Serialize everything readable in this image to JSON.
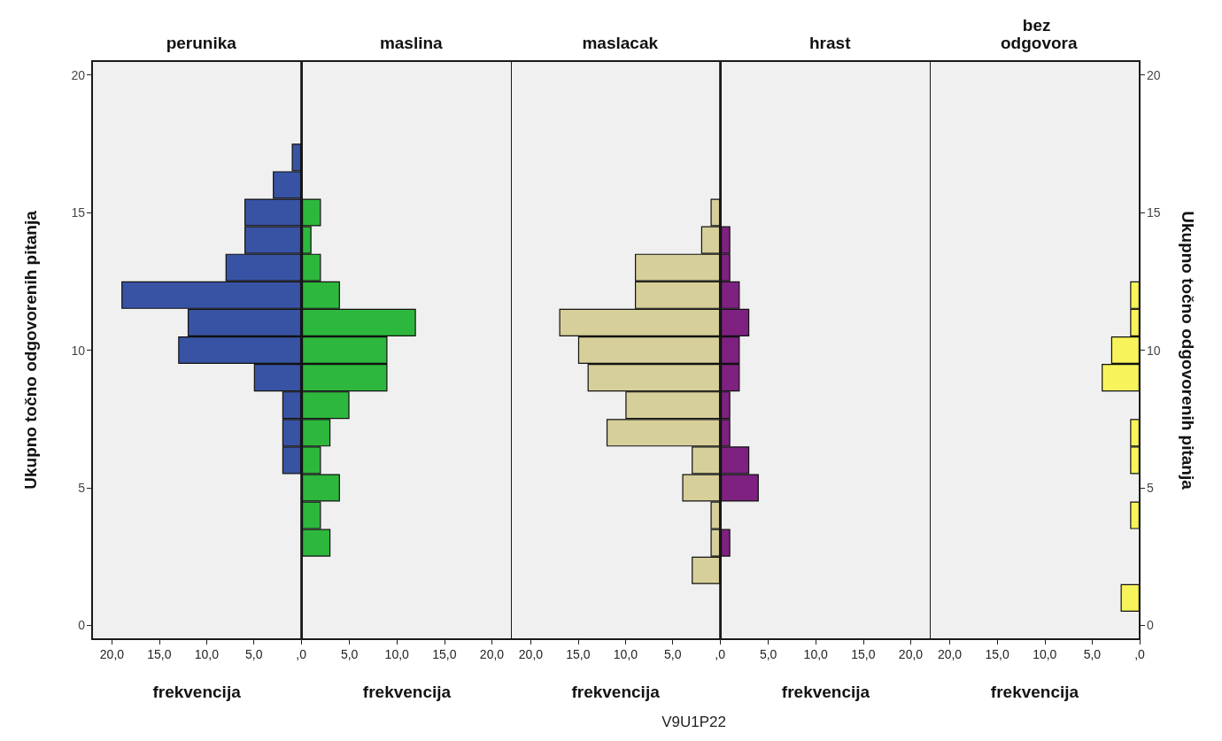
{
  "chart_data": [
    {
      "type": "bar",
      "orientation": "horizontal",
      "title": "perunika",
      "xlabel": "frekvencija",
      "ylabel": "Ukupno točno odgovorenih pitanja",
      "categories": [
        "20",
        null,
        null,
        null,
        null,
        "15",
        null,
        null,
        null,
        null,
        "10",
        null,
        null,
        null,
        null,
        "5",
        null,
        null,
        null,
        null,
        "0"
      ],
      "series": [
        {
          "color": "#3953a4",
          "values": [
            0,
            0,
            0,
            1,
            3,
            6,
            6,
            8,
            19,
            12,
            13,
            5,
            2,
            2,
            2,
            0,
            0,
            0,
            0,
            0,
            0
          ]
        }
      ],
      "xlim": [
        22.1,
        0
      ],
      "xticks": [
        {
          "value": 20,
          "label": "20,0"
        },
        {
          "value": 15,
          "label": "15,0"
        },
        {
          "value": 10,
          "label": "10,0"
        },
        {
          "value": 5,
          "label": "5,0"
        },
        {
          "value": 0,
          "label": ",0"
        }
      ]
    },
    {
      "type": "bar",
      "orientation": "horizontal",
      "title": "maslina",
      "xlabel": "frekvencija",
      "categories": [
        "20",
        null,
        null,
        null,
        null,
        "15",
        null,
        null,
        null,
        null,
        "10",
        null,
        null,
        null,
        null,
        "5",
        null,
        null,
        null,
        null,
        "0"
      ],
      "series": [
        {
          "color": "#2db83d",
          "values": [
            0,
            0,
            0,
            0,
            0,
            2,
            1,
            2,
            4,
            12,
            9,
            9,
            5,
            3,
            2,
            4,
            2,
            3,
            0,
            0,
            0
          ]
        }
      ],
      "xlim": [
        0,
        22.1
      ],
      "xticks": [
        {
          "value": 5,
          "label": "5,0"
        },
        {
          "value": 10,
          "label": "10,0"
        },
        {
          "value": 15,
          "label": "15,0"
        },
        {
          "value": 20,
          "label": "20,0"
        }
      ],
      "tick_labels": "x"
    },
    {
      "type": "bar",
      "orientation": "horizontal",
      "title": "maslacak",
      "xlabel": "frekvencija",
      "categories": [
        "20",
        null,
        null,
        null,
        null,
        "15",
        null,
        null,
        null,
        null,
        "10",
        null,
        null,
        null,
        null,
        "5",
        null,
        null,
        null,
        null,
        "0"
      ],
      "series": [
        {
          "color": "#d6cf99",
          "values": [
            0,
            0,
            0,
            0,
            0,
            1,
            2,
            9,
            9,
            17,
            15,
            14,
            10,
            12,
            3,
            4,
            1,
            1,
            3,
            0,
            0
          ]
        }
      ],
      "xlim": [
        22.1,
        0
      ],
      "xticks": [
        {
          "value": 20,
          "label": "20,0"
        },
        {
          "value": 15,
          "label": "15,0"
        },
        {
          "value": 10,
          "label": "10,0"
        },
        {
          "value": 5,
          "label": "5,0"
        },
        {
          "value": 0,
          "label": ",0"
        }
      ],
      "tick_labels": "x",
      "annotations": [
        "V9U1P22"
      ]
    },
    {
      "type": "bar",
      "orientation": "horizontal",
      "title": "hrast",
      "xlabel": "frekvencija",
      "categories": [
        "20",
        null,
        null,
        null,
        null,
        "15",
        null,
        null,
        null,
        null,
        "10",
        null,
        null,
        null,
        null,
        "5",
        null,
        null,
        null,
        null,
        "0"
      ],
      "series": [
        {
          "color": "#7e2180",
          "values": [
            0,
            0,
            0,
            0,
            0,
            0,
            1,
            1,
            2,
            3,
            2,
            2,
            1,
            1,
            3,
            4,
            0,
            1,
            0,
            0,
            0
          ]
        }
      ],
      "xlim": [
        0,
        22.1
      ],
      "xticks": [
        {
          "value": 5,
          "label": "5,0"
        },
        {
          "value": 10,
          "label": "10,0"
        },
        {
          "value": 15,
          "label": "15,0"
        },
        {
          "value": 20,
          "label": "20,0"
        }
      ],
      "tick_labels": "x"
    },
    {
      "type": "bar",
      "orientation": "horizontal",
      "title": "bez odgovora",
      "xlabel": "frekvencija",
      "ylabel": "Ukupno točno odgovorenih pitanja",
      "categories": [
        "20",
        null,
        null,
        null,
        null,
        "15",
        null,
        null,
        null,
        null,
        "10",
        null,
        null,
        null,
        null,
        "5",
        null,
        null,
        null,
        null,
        "0"
      ],
      "series": [
        {
          "color": "#f7f35a",
          "values": [
            0,
            0,
            0,
            0,
            0,
            0,
            0,
            0,
            1,
            1,
            3,
            4,
            0,
            1,
            1,
            0,
            1,
            0,
            0,
            2,
            0
          ]
        }
      ],
      "xlim": [
        22.1,
        0
      ],
      "xticks": [
        {
          "value": 20,
          "label": "20,0"
        },
        {
          "value": 15,
          "label": "15,0"
        },
        {
          "value": 10,
          "label": "10,0"
        },
        {
          "value": 5,
          "label": "5,0"
        },
        {
          "value": 0,
          "label": ",0"
        }
      ]
    }
  ]
}
